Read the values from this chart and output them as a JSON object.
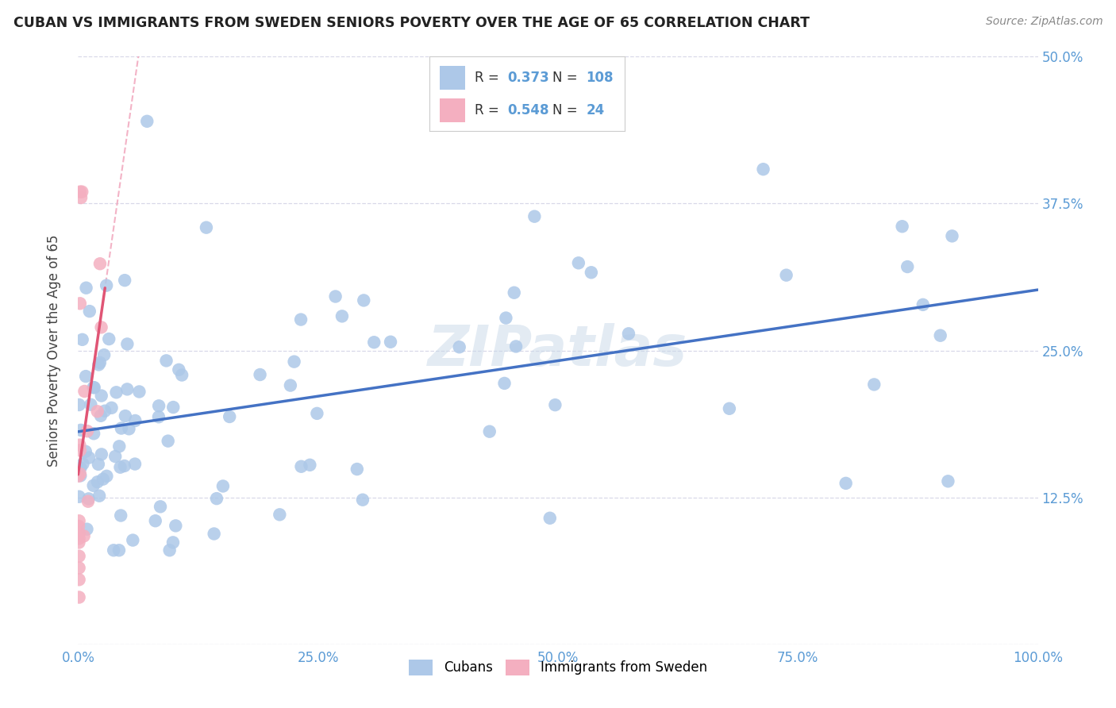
{
  "title": "CUBAN VS IMMIGRANTS FROM SWEDEN SENIORS POVERTY OVER THE AGE OF 65 CORRELATION CHART",
  "source": "Source: ZipAtlas.com",
  "ylabel": "Seniors Poverty Over the Age of 65",
  "xlim": [
    0.0,
    1.0
  ],
  "ylim": [
    0.0,
    0.5
  ],
  "xticks": [
    0.0,
    0.25,
    0.5,
    0.75,
    1.0
  ],
  "xticklabels": [
    "0.0%",
    "25.0%",
    "50.0%",
    "75.0%",
    "100.0%"
  ],
  "yticks": [
    0.0,
    0.125,
    0.25,
    0.375,
    0.5
  ],
  "yticklabels_right": [
    "",
    "12.5%",
    "25.0%",
    "37.5%",
    "50.0%"
  ],
  "blue_scatter": "#adc8e8",
  "pink_scatter": "#f4afc0",
  "blue_line": "#4472c4",
  "pink_line": "#e05575",
  "pink_dash": "#f0a0b8",
  "watermark": "ZIPatlas",
  "legend_r1": "0.373",
  "legend_n1": "108",
  "legend_r2": "0.548",
  "legend_n2": "24",
  "label1": "Cubans",
  "label2": "Immigrants from Sweden",
  "tick_color": "#5b9bd5",
  "grid_color": "#d8d8e8",
  "title_color": "#222222",
  "source_color": "#888888"
}
